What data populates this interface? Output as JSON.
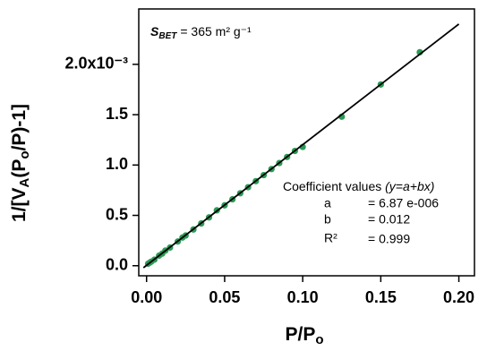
{
  "chart_data": {
    "type": "scatter",
    "xlabel": {
      "main": "P/P",
      "sub": "o"
    },
    "ylabel": {
      "parts": [
        "1/[V",
        "A",
        "(P",
        "o",
        "/P)-1]"
      ]
    },
    "xlim": [
      -0.005,
      0.21
    ],
    "ylim": [
      -0.1,
      2.55
    ],
    "xticks": [
      {
        "value": 0,
        "label": "0.00"
      },
      {
        "value": 0.05,
        "label": "0.05"
      },
      {
        "value": 0.1,
        "label": "0.10"
      },
      {
        "value": 0.15,
        "label": "0.15"
      },
      {
        "value": 0.2,
        "label": "0.20"
      }
    ],
    "yticks": [
      {
        "value": 0,
        "label": "0.0"
      },
      0.5,
      {
        "value": 1,
        "label": "1.0"
      },
      1.5,
      {
        "value": 2,
        "label": "2.0x10⁻³"
      }
    ],
    "series": [
      {
        "color": "#2a9a55",
        "x": [
          0.001,
          0.002,
          0.003,
          0.005,
          0.008,
          0.01,
          0.012,
          0.015,
          0.02,
          0.023,
          0.025,
          0.03,
          0.035,
          0.04,
          0.045,
          0.05,
          0.055,
          0.06,
          0.065,
          0.07,
          0.075,
          0.08,
          0.085,
          0.09,
          0.095,
          0.1,
          0.125,
          0.15,
          0.175
        ],
        "values": [
          0.02,
          0.03,
          0.04,
          0.06,
          0.1,
          0.12,
          0.15,
          0.18,
          0.24,
          0.28,
          0.3,
          0.36,
          0.42,
          0.48,
          0.55,
          0.6,
          0.66,
          0.72,
          0.78,
          0.84,
          0.9,
          0.96,
          1.02,
          1.08,
          1.14,
          1.18,
          1.48,
          1.8,
          2.12
        ]
      },
      {
        "type": "line",
        "color": "#000000",
        "x": [
          -0.002,
          0.2
        ],
        "values": [
          -0.02,
          2.4
        ]
      }
    ],
    "annotation": {
      "symbol": "S",
      "subscript": "BET",
      "text": "= 365 m² g⁻¹"
    },
    "coefficients": {
      "title": "Coefficient values",
      "equation": "(y=a+bx)",
      "rows": [
        [
          "a",
          "= 6.87 e-006"
        ],
        [
          "b",
          "= 0.012"
        ],
        [
          "R²",
          "= 0.999"
        ]
      ]
    }
  }
}
